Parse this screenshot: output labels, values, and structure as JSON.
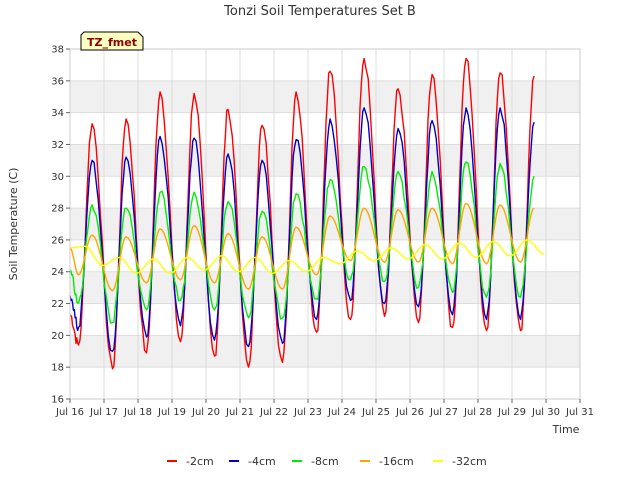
{
  "chart_data": {
    "type": "line",
    "title": "Tonzi Soil Temperatures Set B",
    "xlabel": "Time",
    "ylabel": "Soil Temperature (C)",
    "station_tag": "TZ_fmet",
    "xlim": [
      16,
      31
    ],
    "ylim": [
      16,
      38
    ],
    "x_ticks": [
      {
        "v": 16,
        "label": "Jul 16"
      },
      {
        "v": 17,
        "label": "Jul 17"
      },
      {
        "v": 18,
        "label": "Jul 18"
      },
      {
        "v": 19,
        "label": "Jul 19"
      },
      {
        "v": 20,
        "label": "Jul 20"
      },
      {
        "v": 21,
        "label": "Jul 21"
      },
      {
        "v": 22,
        "label": "Jul 22"
      },
      {
        "v": 23,
        "label": "Jul 23"
      },
      {
        "v": 24,
        "label": "Jul 24"
      },
      {
        "v": 25,
        "label": "Jul 25"
      },
      {
        "v": 26,
        "label": "Jul 26"
      },
      {
        "v": 27,
        "label": "Jul 27"
      },
      {
        "v": 28,
        "label": "Jul 28"
      },
      {
        "v": 29,
        "label": "Jul 29"
      },
      {
        "v": 30,
        "label": "Jul 30"
      },
      {
        "v": 31,
        "label": "Jul 31"
      }
    ],
    "y_ticks": [
      16,
      18,
      20,
      22,
      24,
      26,
      28,
      30,
      32,
      34,
      36,
      38
    ],
    "grid": true,
    "legend_position": "bottom",
    "x_start": 16.0,
    "x_end": 30.0,
    "series": [
      {
        "name": "-2cm",
        "color": "#ff0000",
        "min": [
          19.4,
          17.9,
          18.9,
          19.6,
          18.7,
          18.0,
          18.3,
          20.2,
          21.0,
          21.2,
          20.8,
          20.5,
          20.3,
          20.3,
          20.8,
          22.7
        ],
        "max": [
          33.3,
          33.6,
          35.3,
          35.2,
          34.2,
          33.2,
          35.3,
          36.6,
          37.4,
          35.5,
          36.4,
          37.4,
          36.5,
          36.3
        ]
      },
      {
        "name": "-4cm",
        "color": "#0000cc",
        "min": [
          20.5,
          19.0,
          19.9,
          20.6,
          19.7,
          19.3,
          19.5,
          21.0,
          22.2,
          22.0,
          21.8,
          21.3,
          21.0,
          21.0,
          21.6,
          23.9
        ],
        "max": [
          31.0,
          31.2,
          32.5,
          32.4,
          31.4,
          31.0,
          32.3,
          33.6,
          34.3,
          33.0,
          33.5,
          34.3,
          34.3,
          33.4
        ]
      },
      {
        "name": "-8cm",
        "color": "#00ee00",
        "min": [
          22.0,
          20.8,
          21.6,
          22.2,
          21.6,
          21.1,
          21.1,
          22.3,
          23.5,
          23.4,
          23.0,
          22.7,
          22.4,
          22.4,
          23.0,
          25.5
        ],
        "max": [
          28.2,
          28.0,
          29.0,
          29.0,
          28.4,
          27.8,
          28.9,
          29.8,
          30.6,
          30.3,
          30.3,
          30.9,
          30.8,
          30.0
        ]
      },
      {
        "name": "-16cm",
        "color": "#ffa500",
        "min": [
          23.8,
          22.8,
          23.3,
          23.5,
          23.3,
          22.9,
          22.9,
          23.8,
          24.7,
          24.6,
          24.6,
          24.5,
          24.5,
          24.6,
          24.9,
          26.6
        ],
        "max": [
          26.3,
          26.2,
          26.7,
          26.9,
          26.4,
          26.2,
          26.8,
          27.5,
          28.0,
          27.9,
          28.0,
          28.3,
          28.2,
          28.0
        ]
      },
      {
        "name": "-32cm",
        "color": "#ffff00",
        "min": [
          24.4,
          23.9,
          23.9,
          24.1,
          24.0,
          23.9,
          24.0,
          24.5,
          24.7,
          24.8,
          24.8,
          24.9,
          25.0,
          25.1,
          25.2
        ],
        "max": [
          25.6,
          24.9,
          24.8,
          24.9,
          25.0,
          24.9,
          24.7,
          24.9,
          25.3,
          25.5,
          25.7,
          25.8,
          25.9,
          26.0,
          25.9
        ]
      }
    ]
  }
}
